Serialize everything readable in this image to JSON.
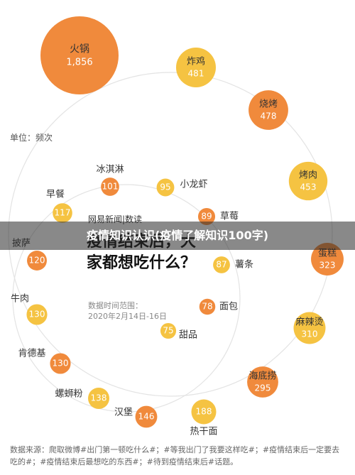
{
  "chart_data": {
    "type": "bubble",
    "unit_label": "单位：频次",
    "logo": "网易新闻|数读",
    "title": "疫情结束后，大家都想吃什么？",
    "date_label": "数据时间范围：",
    "date_range": "2020年2月14日-16日",
    "banner": "疫情知识认识(疫情了解知识100字)",
    "source": "数据来源：爬取微博#出门第一顿吃什么#；#等我出门了我要这样吃#；#疫情结束后一定要去吃的#；#疫情结束后最想吃的东西#；#待到疫情结束后#话题。",
    "categories": [
      "火锅",
      "炸鸡",
      "烧烤",
      "烤肉",
      "蛋糕",
      "麻辣烫",
      "海底捞",
      "热干面",
      "汉堡",
      "螺蛳粉",
      "肯德基",
      "牛肉",
      "披萨",
      "早餐",
      "冰淇淋",
      "小龙虾",
      "草莓",
      "薯条",
      "面包",
      "甜品"
    ],
    "values": [
      1856,
      481,
      478,
      453,
      323,
      310,
      295,
      188,
      146,
      138,
      130,
      130,
      120,
      117,
      101,
      95,
      89,
      87,
      78,
      75
    ],
    "value_labels": [
      "1,856",
      "481",
      "478",
      "453",
      "323",
      "310",
      "295",
      "188",
      "146",
      "138",
      "130",
      "130",
      "120",
      "117",
      "101",
      "95",
      "89",
      "87",
      "78",
      "75"
    ],
    "point_colors": [
      "#f08a3c",
      "#f5c342",
      "#f08a3c",
      "#f5c342",
      "#f08a3c",
      "#f5c342",
      "#f08a3c",
      "#f5c342",
      "#f08a3c",
      "#f5c342",
      "#f08a3c",
      "#f5c342",
      "#f08a3c",
      "#f5c342",
      "#f08a3c",
      "#f5c342",
      "#f08a3c",
      "#f5c342",
      "#f08a3c",
      "#f5c342"
    ]
  }
}
